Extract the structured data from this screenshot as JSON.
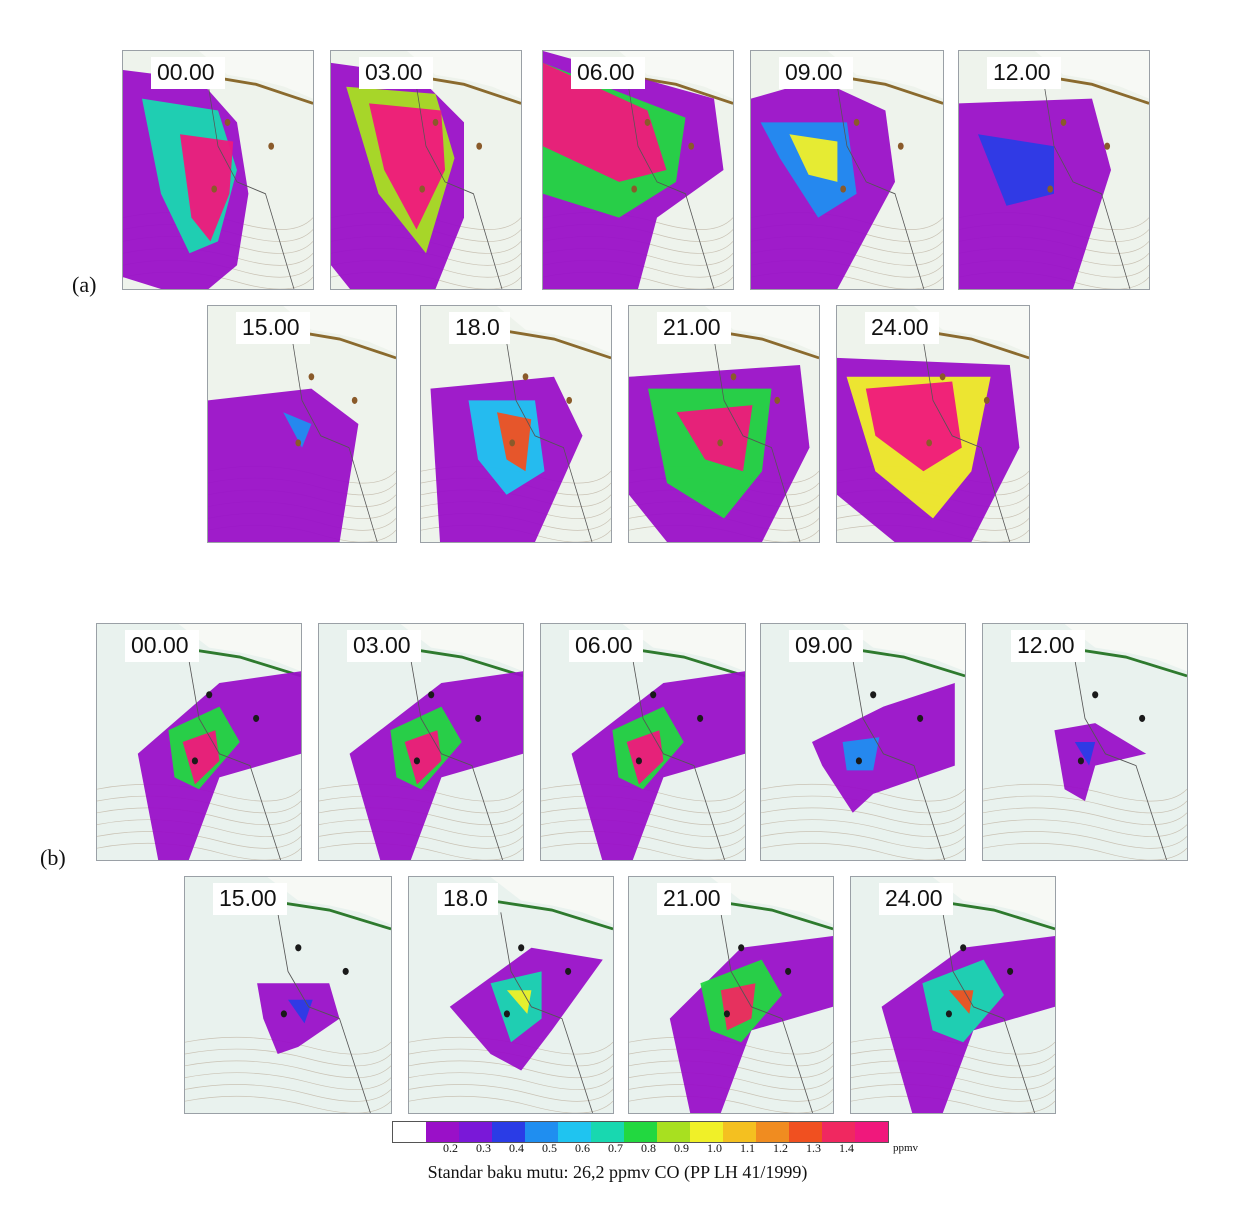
{
  "groups": [
    {
      "label": "(a)",
      "panels": [
        {
          "time": "00.00",
          "type": "a"
        },
        {
          "time": "03.00",
          "type": "a"
        },
        {
          "time": "06.00",
          "type": "a"
        },
        {
          "time": "09.00",
          "type": "a"
        },
        {
          "time": "12.00",
          "type": "a"
        },
        {
          "time": "15.00",
          "type": "a"
        },
        {
          "time": "18.0",
          "type": "a"
        },
        {
          "time": "21.00",
          "type": "a"
        },
        {
          "time": "24.00",
          "type": "a"
        }
      ]
    },
    {
      "label": "(b)",
      "panels": [
        {
          "time": "00.00",
          "type": "b"
        },
        {
          "time": "03.00",
          "type": "b"
        },
        {
          "time": "06.00",
          "type": "b"
        },
        {
          "time": "09.00",
          "type": "b"
        },
        {
          "time": "12.00",
          "type": "b"
        },
        {
          "time": "15.00",
          "type": "b"
        },
        {
          "time": "18.0",
          "type": "b"
        },
        {
          "time": "21.00",
          "type": "b"
        },
        {
          "time": "24.00",
          "type": "b"
        }
      ]
    }
  ],
  "colorbar": {
    "colors": [
      "#ffffff",
      "#9a10c8",
      "#7a18d8",
      "#2a3ce6",
      "#1f8ef0",
      "#1fc4f0",
      "#18d8b0",
      "#22d840",
      "#a8e020",
      "#f0f028",
      "#f4c020",
      "#f08c20",
      "#f05020",
      "#f02860",
      "#f0187c"
    ],
    "ticks": [
      "",
      "0.2",
      "0.3",
      "0.4",
      "0.5",
      "0.6",
      "0.7",
      "0.8",
      "0.9",
      "1.0",
      "1.1",
      "1.2",
      "1.3",
      "1.4",
      ""
    ],
    "unit": "ppmv"
  },
  "caption": "Standar baku mutu: 26,2 ppmv CO (PP LH 41/1999)"
}
